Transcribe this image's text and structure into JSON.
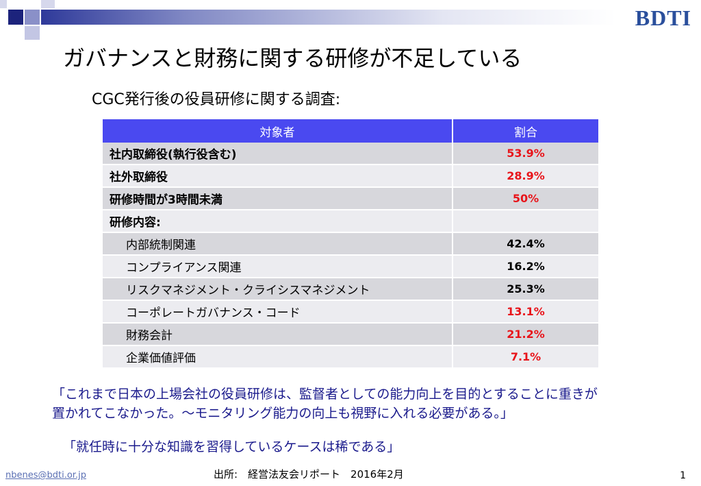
{
  "brand": "BDTI",
  "title": "ガバナンスと財務に関する研修が不足している",
  "subtitle": "CGC発行後の役員研修に関する調査:",
  "table": {
    "headers": [
      "対象者",
      "割合"
    ],
    "rows": [
      {
        "label": "社内取締役(執行役含む)",
        "value": "53.9%",
        "value_color": "red",
        "bold": true,
        "indent": false
      },
      {
        "label": "社外取締役",
        "value": "28.9%",
        "value_color": "red",
        "bold": true,
        "indent": false
      },
      {
        "label": "研修時間が3時間未満",
        "value": "50%",
        "value_color": "red",
        "bold": true,
        "indent": false
      },
      {
        "label": "研修内容:",
        "value": "",
        "value_color": "black",
        "bold": true,
        "indent": false
      },
      {
        "label": "内部統制関連",
        "value": "42.4%",
        "value_color": "black",
        "bold": false,
        "indent": true
      },
      {
        "label": "コンプライアンス関連",
        "value": "16.2%",
        "value_color": "black",
        "bold": false,
        "indent": true
      },
      {
        "label": "リスクマネジメント・クライシスマネジメント",
        "value": "25.3%",
        "value_color": "black",
        "bold": false,
        "indent": true
      },
      {
        "label": "コーポレートガバナンス・コード",
        "value": "13.1%",
        "value_color": "red",
        "bold": false,
        "indent": true
      },
      {
        "label": "財務会計",
        "value": "21.2%",
        "value_color": "red",
        "bold": false,
        "indent": true
      },
      {
        "label": "企業価値評価",
        "value": "7.1%",
        "value_color": "red",
        "bold": false,
        "indent": true
      }
    ]
  },
  "quotes": {
    "q1_line1": "「これまで日本の上場会社の役員研修は、監督者としての能力向上を目的とすることに重きが",
    "q1_line2": "置かれてこなかった。～モニタリング能力の向上も視野に入れる必要がある。」",
    "q2": "「就任時に十分な知識を習得しているケースは稀である」"
  },
  "footer": {
    "email": "nbenes@bdti.or.jp",
    "source": "出所:　経営法友会リポート　2016年2月",
    "page": "1"
  },
  "colors": {
    "header_bg": "#4a49f0",
    "row_dark": "#d7d7dc",
    "row_light": "#ececf0",
    "accent_red": "#e8141a",
    "quote_blue": "#1a1a8c",
    "brand_blue": "#2a4f9c"
  }
}
